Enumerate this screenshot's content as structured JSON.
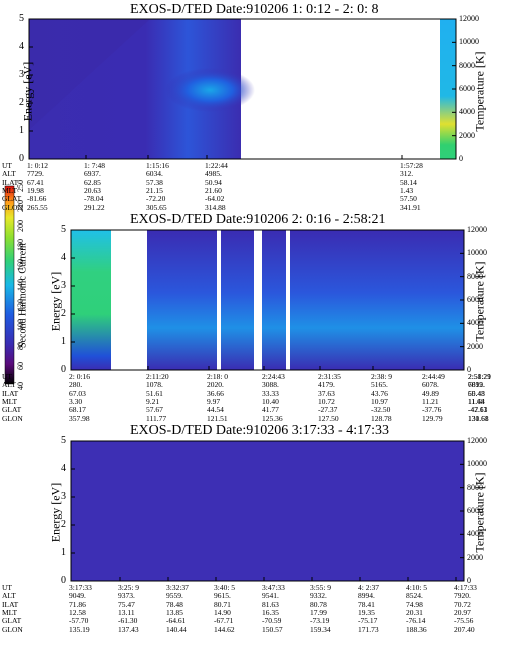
{
  "panels": [
    {
      "title": "EXOS-D/TED   Date:910206  1: 0:12 - 2: 0: 8",
      "ylabel_left": "Energy [eV]",
      "ylabel_right": "Temperature [K]",
      "row_labels": [
        "UT",
        "ALT",
        "ILAT",
        "MLT",
        "GLAT",
        "GLON"
      ],
      "columns": [
        [
          "1: 0:12",
          "7729.",
          "67.41",
          "19.98",
          "-81.66",
          "265.55"
        ],
        [
          "1: 7:48",
          "6937.",
          "62.85",
          "20.63",
          "-78.04",
          "291.22"
        ],
        [
          "1:15:16",
          "6034.",
          "57.38",
          "21.15",
          "-72.20",
          "305.65"
        ],
        [
          "1:22:44",
          "4985.",
          "50.94",
          "21.60",
          "-64.02",
          "314.88"
        ],
        [
          "1:57:28",
          "312.",
          "58.14",
          "1.43",
          "57.50",
          "341.91"
        ]
      ]
    },
    {
      "title": "EXOS-D/TED   Date:910206  2: 0:16 - 2:58:21",
      "ylabel_left": "Energy [eV]",
      "ylabel_right": "Temperature [K]",
      "row_labels": [
        "UT",
        "ALT",
        "ILAT",
        "MLT",
        "GLAT",
        "GLON"
      ],
      "columns": [
        [
          "2: 0:16",
          "280.",
          "67.03",
          "3.30",
          "68.17",
          "357.98"
        ],
        [
          "2:11:20",
          "1078.",
          "51.61",
          "9.21",
          "57.67",
          "111.77"
        ],
        [
          "2:18: 0",
          "2020.",
          "36.66",
          "9.97",
          "44.54",
          "121.51"
        ],
        [
          "2:24:43",
          "3088.",
          "33.33",
          "10.40",
          "41.77",
          "125.36"
        ],
        [
          "2:31:35",
          "4179.",
          "37.63",
          "10.72",
          "-27.37",
          "127.50"
        ],
        [
          "2:38: 9",
          "5165.",
          "43.76",
          "10.97",
          "-32.50",
          "128.78"
        ],
        [
          "2:44:49",
          "6078.",
          "49.89",
          "11.21",
          "-37.76",
          "129.79"
        ],
        [
          "2:51:29",
          "6892.",
          "55.43",
          "11.44",
          "-42.61",
          "130.68"
        ],
        [
          "2:58:21",
          "7619.",
          "60.48",
          "11.68",
          "-47.13",
          "131.61"
        ]
      ]
    },
    {
      "title": "EXOS-D/TED   Date:910206  3:17:33 - 4:17:33",
      "ylabel_left": "Energy [eV]",
      "ylabel_right": "Temperature [K]",
      "row_labels": [
        "UT",
        "ALT",
        "ILAT",
        "MLT",
        "GLAT",
        "GLON"
      ],
      "columns": [
        [
          "3:17:33",
          "9049.",
          "71.86",
          "12.58",
          "-57.70",
          "135.19"
        ],
        [
          "3:25: 9",
          "9373.",
          "75.47",
          "13.11",
          "-61.30",
          "137.43"
        ],
        [
          "3:32:37",
          "9559.",
          "78.48",
          "13.85",
          "-64.61",
          "140.44"
        ],
        [
          "3:40: 5",
          "9615.",
          "80.71",
          "14.90",
          "-67.71",
          "144.62"
        ],
        [
          "3:47:33",
          "9541.",
          "81.63",
          "16.35",
          "-70.59",
          "150.57"
        ],
        [
          "3:55: 9",
          "9332.",
          "80.78",
          "17.99",
          "-73.19",
          "159.34"
        ],
        [
          "4: 2:37",
          "8994.",
          "78.41",
          "19.35",
          "-75.17",
          "171.73"
        ],
        [
          "4:10: 5",
          "8524.",
          "74.98",
          "20.31",
          "-76.14",
          "188.36"
        ],
        [
          "4:17:33",
          "7920.",
          "70.72",
          "20.97",
          "-75.56",
          "207.40"
        ]
      ]
    }
  ],
  "colorbar": {
    "label": "Second Harmonic Current",
    "ticks": [
      "40",
      "60",
      "80",
      "100",
      "120",
      "140",
      "160",
      "180",
      "200",
      "220",
      "250"
    ]
  },
  "chart_data": [
    {
      "type": "heatmap",
      "title": "EXOS-D/TED   Date:910206  1: 0:12 - 2: 0: 8",
      "ylabel": "Energy [eV]",
      "y2label": "Temperature [K]",
      "ylim": [
        0,
        5
      ],
      "y2lim": [
        0,
        12000
      ],
      "yticks": [
        "0",
        "1",
        "2",
        "3",
        "4",
        "5"
      ],
      "y2ticks": [
        "0",
        "2000",
        "4000",
        "6000",
        "8000",
        "10000",
        "12000"
      ],
      "x_ticks": [
        "1: 0:12",
        "1: 7:48",
        "1:15:16",
        "1:22:44",
        "1:57:28"
      ]
    },
    {
      "type": "heatmap",
      "title": "EXOS-D/TED   Date:910206  2: 0:16 - 2:58:21",
      "ylabel": "Energy [eV]",
      "y2label": "Temperature [K]",
      "ylim": [
        0,
        5
      ],
      "y2lim": [
        0,
        12000
      ],
      "yticks": [
        "0",
        "1",
        "2",
        "3",
        "4",
        "5"
      ],
      "y2ticks": [
        "0",
        "2000",
        "4000",
        "6000",
        "8000",
        "10000",
        "12000"
      ],
      "x_ticks": [
        "2: 0:16",
        "2:11:20",
        "2:18: 0",
        "2:24:43",
        "2:31:35",
        "2:38: 9",
        "2:44:49",
        "2:51:29",
        "2:58:21"
      ]
    },
    {
      "type": "heatmap",
      "title": "EXOS-D/TED   Date:910206  3:17:33 - 4:17:33",
      "ylabel": "Energy [eV]",
      "y2label": "Temperature [K]",
      "ylim": [
        0,
        5
      ],
      "y2lim": [
        0,
        12000
      ],
      "yticks": [
        "0",
        "1",
        "2",
        "3",
        "4",
        "5"
      ],
      "y2ticks": [
        "0",
        "2000",
        "4000",
        "6000",
        "8000",
        "10000",
        "12000"
      ],
      "x_ticks": [
        "3:17:33",
        "3:25: 9",
        "3:32:37",
        "3:40: 5",
        "3:47:33",
        "3:55: 9",
        "4: 2:37",
        "4:10: 5",
        "4:17:33"
      ]
    }
  ],
  "colors": {
    "background_field": "#3d2fb4",
    "deep": "#2a1a8a",
    "mid_blue": "#1f5be0",
    "cyan": "#19b8e6",
    "green": "#2fd07a",
    "yellow": "#e8e82a",
    "orange": "#ff9a1a",
    "red": "#e01010"
  }
}
